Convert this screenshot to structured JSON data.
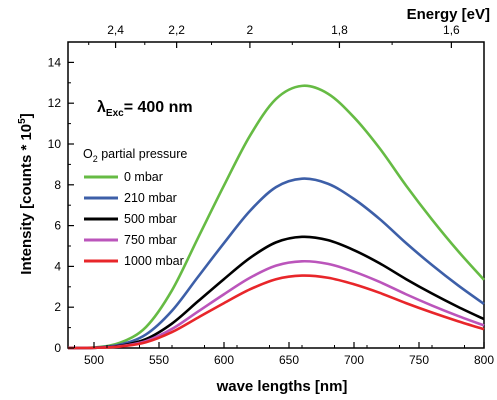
{
  "chart_data": {
    "type": "line",
    "xlabel": "wave lengths [nm]",
    "ylabel_main": "Intensity [counts * 10",
    "ylabel_exp": "5",
    "ylabel_close": "]",
    "xlim": [
      480,
      800
    ],
    "ylim": [
      0,
      15
    ],
    "x_ticks": [
      500,
      550,
      600,
      650,
      700,
      750,
      800
    ],
    "y_ticks": [
      0,
      2,
      4,
      6,
      8,
      10,
      12,
      14
    ],
    "top_axis": {
      "label": "Energy [eV]",
      "ticks": [
        {
          "value": 2.4,
          "text": "2,4"
        },
        {
          "value": 2.2,
          "text": "2,2"
        },
        {
          "value": 2.0,
          "text": "2"
        },
        {
          "value": 1.8,
          "text": "1,8"
        },
        {
          "value": 1.6,
          "text": "1,6"
        }
      ]
    },
    "annotation": {
      "prefix": "λ",
      "subscript": "Exc",
      "text": "= 400 nm"
    },
    "legend": {
      "title_prefix": "O",
      "title_sub": "2",
      "title_rest": " partial pressure"
    },
    "series": [
      {
        "name": "0 mbar",
        "color": "#66bb44",
        "peak": 12.85
      },
      {
        "name": "210 mbar",
        "color": "#3d5fa8",
        "peak": 8.3
      },
      {
        "name": "500 mbar",
        "color": "#000000",
        "peak": 5.45
      },
      {
        "name": "750 mbar",
        "color": "#bb55bb",
        "peak": 4.25
      },
      {
        "name": "1000 mbar",
        "color": "#e8262a",
        "peak": 3.55
      }
    ],
    "x": [
      480,
      500,
      520,
      540,
      560,
      580,
      600,
      620,
      640,
      660,
      680,
      700,
      720,
      740,
      760,
      780,
      800
    ],
    "shape": [
      0.0,
      0.002,
      0.02,
      0.08,
      0.22,
      0.42,
      0.62,
      0.81,
      0.95,
      1.0,
      0.97,
      0.88,
      0.76,
      0.62,
      0.49,
      0.37,
      0.26
    ],
    "grid": false
  }
}
